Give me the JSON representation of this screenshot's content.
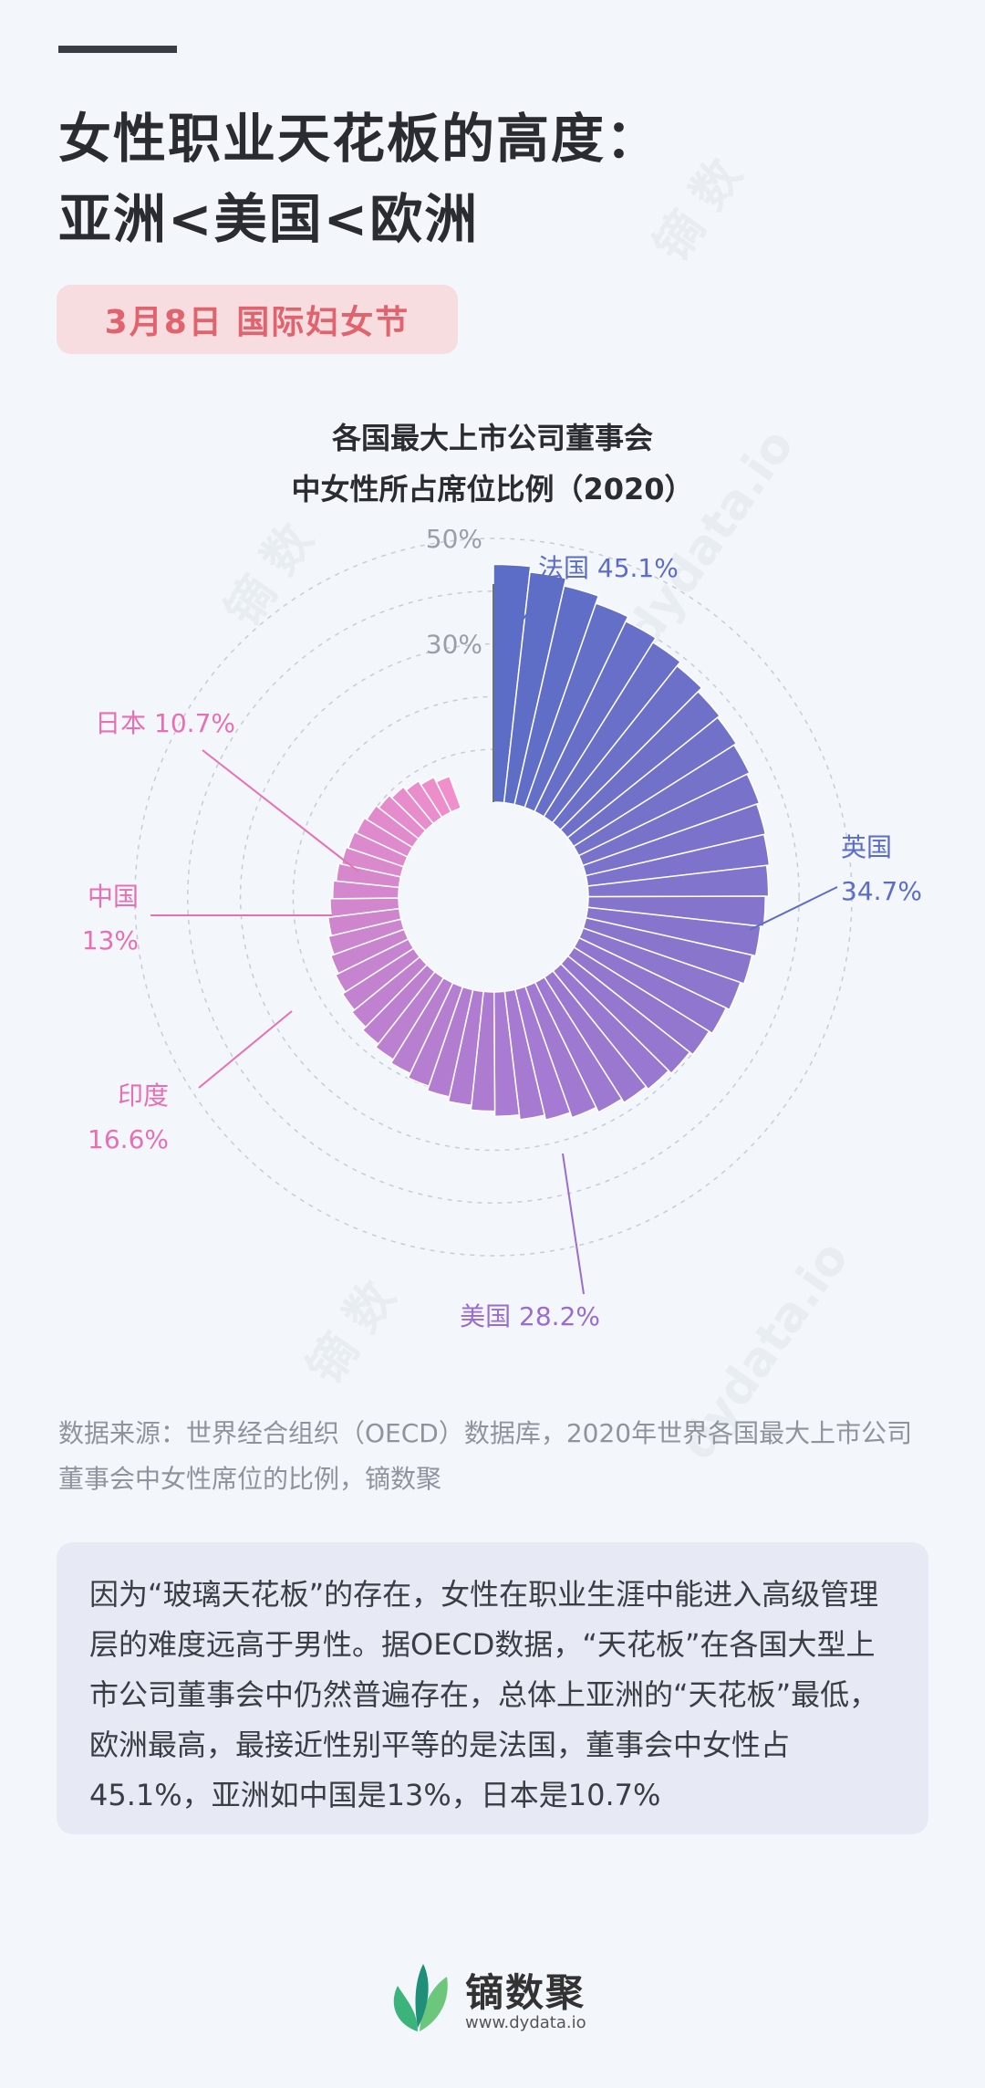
{
  "header": {
    "title_line1": "女性职业天花板的高度：",
    "title_line2": "亚洲<美国<欧洲",
    "badge": "3月8日  国际妇女节"
  },
  "chart_title": {
    "line1": "各国最大上市公司董事会",
    "line2": "中女性所占席位比例（2020）"
  },
  "chart_data": {
    "type": "radial-bar",
    "title": "各国最大上市公司董事会中女性所占席位比例（2020）",
    "axis_ticks": [
      "50%",
      "30%"
    ],
    "rlim": [
      0,
      50
    ],
    "annotated": [
      {
        "country": "法国",
        "value": 45.1,
        "label": "45.1%"
      },
      {
        "country": "英国",
        "value": 34.7,
        "label": "34.7%"
      },
      {
        "country": "美国",
        "value": 28.2,
        "label": "28.2%"
      },
      {
        "country": "印度",
        "value": 16.6,
        "label": "16.6%"
      },
      {
        "country": "中国",
        "value": 13,
        "label": "13%"
      },
      {
        "country": "日本",
        "value": 10.7,
        "label": "10.7%"
      }
    ],
    "values": [
      45.1,
      44.0,
      42.5,
      41.0,
      40.0,
      39.0,
      38.0,
      37.0,
      36.5,
      36.0,
      35.5,
      35.0,
      34.7,
      34.2,
      33.6,
      33.0,
      32.3,
      31.6,
      30.9,
      30.2,
      29.5,
      28.8,
      28.2,
      27.4,
      26.4,
      25.4,
      24.5,
      23.6,
      22.6,
      21.7,
      20.8,
      19.9,
      19.0,
      18.2,
      17.4,
      16.6,
      16.0,
      15.4,
      14.8,
      14.2,
      13.6,
      13.0,
      12.5,
      12.0,
      11.5,
      11.1,
      10.7,
      10.2,
      9.6,
      9.0,
      8.2,
      7.4,
      6.4
    ]
  },
  "colors": {
    "start": "#5b6dc6",
    "mid": "#a77ad2",
    "end": "#f08fcb",
    "pink_label": "#e86fb4",
    "blue_label": "#5b6dc6",
    "purple_label": "#9a6ccf"
  },
  "source": "数据来源：世界经合组织（OECD）数据库，2020年世界各国最大上市公司董事会中女性席位的比例，镝数聚",
  "note": "因为“玻璃天花板”的存在，女性在职业生涯中能进入高级管理层的难度远高于男性。据OECD数据，“天花板”在各国大型上市公司董事会中仍然普遍存在，总体上亚洲的“天花板”最低，欧洲最高，最接近性别平等的是法国，董事会中女性占45.1%，亚洲如中国是13%，日本是10.7%",
  "logo": {
    "name": "镝数聚",
    "url": "www.dydata.io"
  },
  "watermark": [
    "镝 数",
    "dydata.io"
  ]
}
